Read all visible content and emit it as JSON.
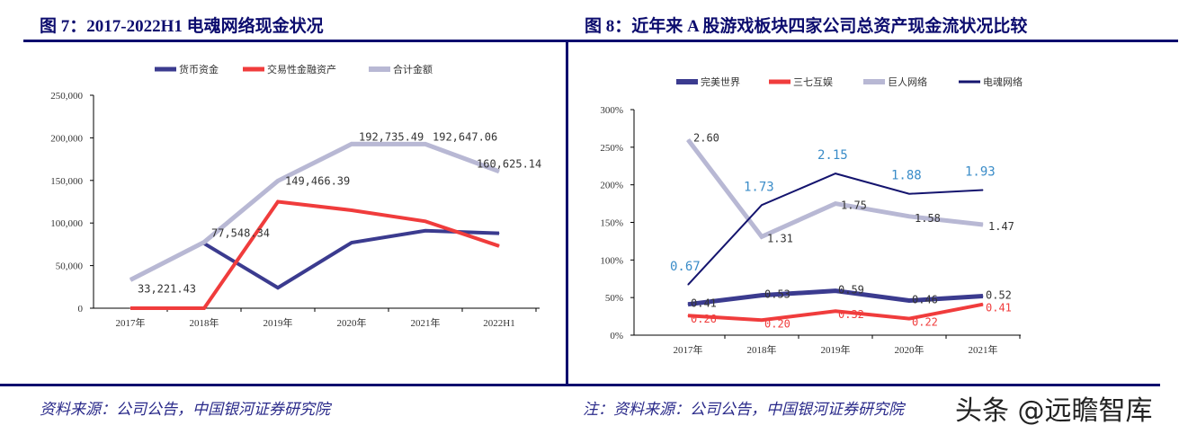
{
  "left_title": "图 7：2017-2022H1 电魂网络现金状况",
  "right_title": "图 8：近年来 A 股游戏板块四家公司总资产现金流状况比较",
  "left_source": "资料来源：公司公告，中国银河证券研究院",
  "right_source": "注：资料来源：公司公告，中国银河证券研究院",
  "watermark": "头条 @远瞻智库",
  "chart_data": [
    {
      "type": "line",
      "categories": [
        "2017年",
        "2018年",
        "2019年",
        "2020年",
        "2021年",
        "2022H1"
      ],
      "ylim": [
        0,
        250000
      ],
      "yticks": [
        "0",
        "50,000",
        "100,000",
        "150,000",
        "200,000",
        "250,000"
      ],
      "legend": "top",
      "series": [
        {
          "name": "货币资金",
          "color": "#3b3b8f",
          "values": [
            null,
            76000,
            24000,
            77000,
            91000,
            88000
          ]
        },
        {
          "name": "交易性金融资产",
          "color": "#f03c3c",
          "values": [
            0,
            0,
            125000,
            115000,
            102000,
            73000
          ]
        },
        {
          "name": "合计金额",
          "color": "#b8b8d4",
          "values": [
            33221.43,
            77548.34,
            149466.39,
            192735.49,
            192647.06,
            160625.14
          ],
          "labels": [
            "33,221.43",
            "77,548.34",
            "149,466.39",
            "192,735.49",
            "192,647.06",
            "160,625.14"
          ]
        }
      ]
    },
    {
      "type": "line",
      "categories": [
        "2017年",
        "2018年",
        "2019年",
        "2020年",
        "2021年"
      ],
      "ylim": [
        0,
        3
      ],
      "yticks": [
        "0%",
        "50%",
        "100%",
        "150%",
        "200%",
        "250%",
        "300%"
      ],
      "legend": "top",
      "series": [
        {
          "name": "完美世界",
          "color": "#3b3b8f",
          "values": [
            0.41,
            0.53,
            0.59,
            0.46,
            0.52
          ],
          "labels": [
            "0.41",
            "0.53",
            "0.59",
            "0.46",
            "0.52"
          ],
          "label_color": "#333333"
        },
        {
          "name": "三七互娱",
          "color": "#f03c3c",
          "values": [
            0.26,
            0.2,
            0.32,
            0.22,
            0.41
          ],
          "labels": [
            "0.26",
            "0.20",
            "0.32",
            "0.22",
            "0.41"
          ],
          "label_color": "#f03c3c"
        },
        {
          "name": "巨人网络",
          "color": "#b8b8d4",
          "values": [
            2.6,
            1.31,
            1.75,
            1.58,
            1.47
          ],
          "labels": [
            "2.60",
            "1.31",
            "1.75",
            "1.58",
            "1.47"
          ],
          "label_color": "#333333"
        },
        {
          "name": "电魂网络",
          "color": "#14146e",
          "values": [
            0.67,
            1.73,
            2.15,
            1.88,
            1.93
          ],
          "labels": [
            "0.67",
            "1.73",
            "2.15",
            "1.88",
            "1.93"
          ],
          "label_color": "#3a8cc8"
        }
      ]
    }
  ]
}
